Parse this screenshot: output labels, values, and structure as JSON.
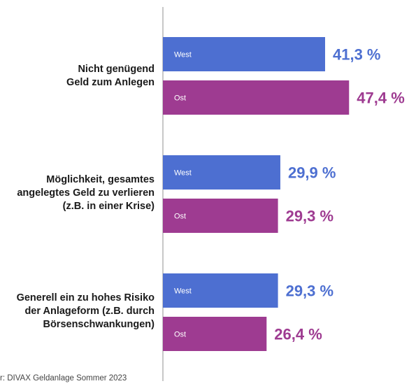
{
  "chart_data": {
    "type": "bar",
    "orientation": "horizontal",
    "categories": [
      [
        "Nicht genügend",
        "Geld zum Anlegen"
      ],
      [
        "Möglichkeit, gesamtes",
        "angelegtes Geld zu verlieren",
        "(z.B. in einer Krise)"
      ],
      [
        "Generell ein zu hohes Risiko",
        "der Anlageform (z.B. durch",
        "Börsenschwankungen)"
      ]
    ],
    "series": [
      {
        "name": "West",
        "values": [
          41.3,
          29.9,
          29.3
        ],
        "value_labels": [
          "41,3 %",
          "29,9 %",
          "29,3 %"
        ],
        "color": "#4d6fd1"
      },
      {
        "name": "Ost",
        "values": [
          47.4,
          29.3,
          26.4
        ],
        "value_labels": [
          "47,4 %",
          "29,3 %",
          "26,4 %"
        ],
        "color": "#9e3b91"
      }
    ],
    "xlim": [
      0,
      50
    ],
    "grid": false,
    "legend": "inside-bars"
  },
  "source": "r: DIVAX Geldanlage Sommer 2023"
}
